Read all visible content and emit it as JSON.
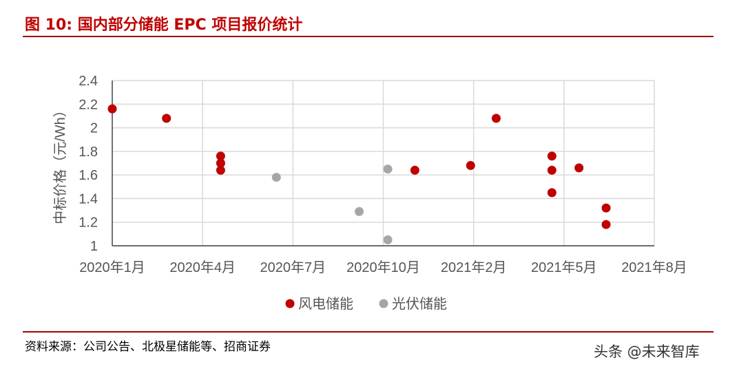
{
  "title": "图 10:  国内部分储能 EPC 项目报价统计",
  "source": "资料来源：公司公告、北极星储能等、招商证券",
  "watermark": "头条 @未来智库",
  "chart_data": {
    "type": "scatter",
    "title": "国内部分储能 EPC 项目报价统计",
    "xlabel": "",
    "ylabel": "中标价格（元/Wh）",
    "x_unit": "months since 2020年1月",
    "xlim": [
      0,
      18
    ],
    "x_ticks": [
      0,
      3,
      6,
      9,
      12,
      15,
      18
    ],
    "x_tick_labels": [
      "2020年1月",
      "2020年4月",
      "2020年7月",
      "2020年10月",
      "2021年2月",
      "2021年5月",
      "2021年8月"
    ],
    "ylim": [
      1,
      2.4
    ],
    "y_ticks": [
      1,
      1.2,
      1.4,
      1.6,
      1.8,
      2,
      2.2,
      2.4
    ],
    "y_tick_labels": [
      "1",
      "1.2",
      "1.4",
      "1.6",
      "1.8",
      "2",
      "2.2",
      "2.4"
    ],
    "grid": true,
    "legend": "bottom",
    "series": [
      {
        "name": "风电储能",
        "color": "#c00000",
        "points": [
          [
            0,
            2.16
          ],
          [
            1.8,
            2.08
          ],
          [
            3.6,
            1.76
          ],
          [
            3.6,
            1.7
          ],
          [
            3.6,
            1.64
          ],
          [
            10.05,
            1.64
          ],
          [
            11.9,
            1.68
          ],
          [
            12.75,
            2.08
          ],
          [
            14.6,
            1.76
          ],
          [
            14.6,
            1.64
          ],
          [
            14.6,
            1.45
          ],
          [
            15.5,
            1.66
          ],
          [
            16.4,
            1.32
          ],
          [
            16.4,
            1.18
          ]
        ]
      },
      {
        "name": "光伏储能",
        "color": "#a6a6a6",
        "points": [
          [
            5.45,
            1.58
          ],
          [
            8.2,
            1.29
          ],
          [
            9.15,
            1.65
          ],
          [
            9.15,
            1.05
          ]
        ]
      }
    ]
  }
}
